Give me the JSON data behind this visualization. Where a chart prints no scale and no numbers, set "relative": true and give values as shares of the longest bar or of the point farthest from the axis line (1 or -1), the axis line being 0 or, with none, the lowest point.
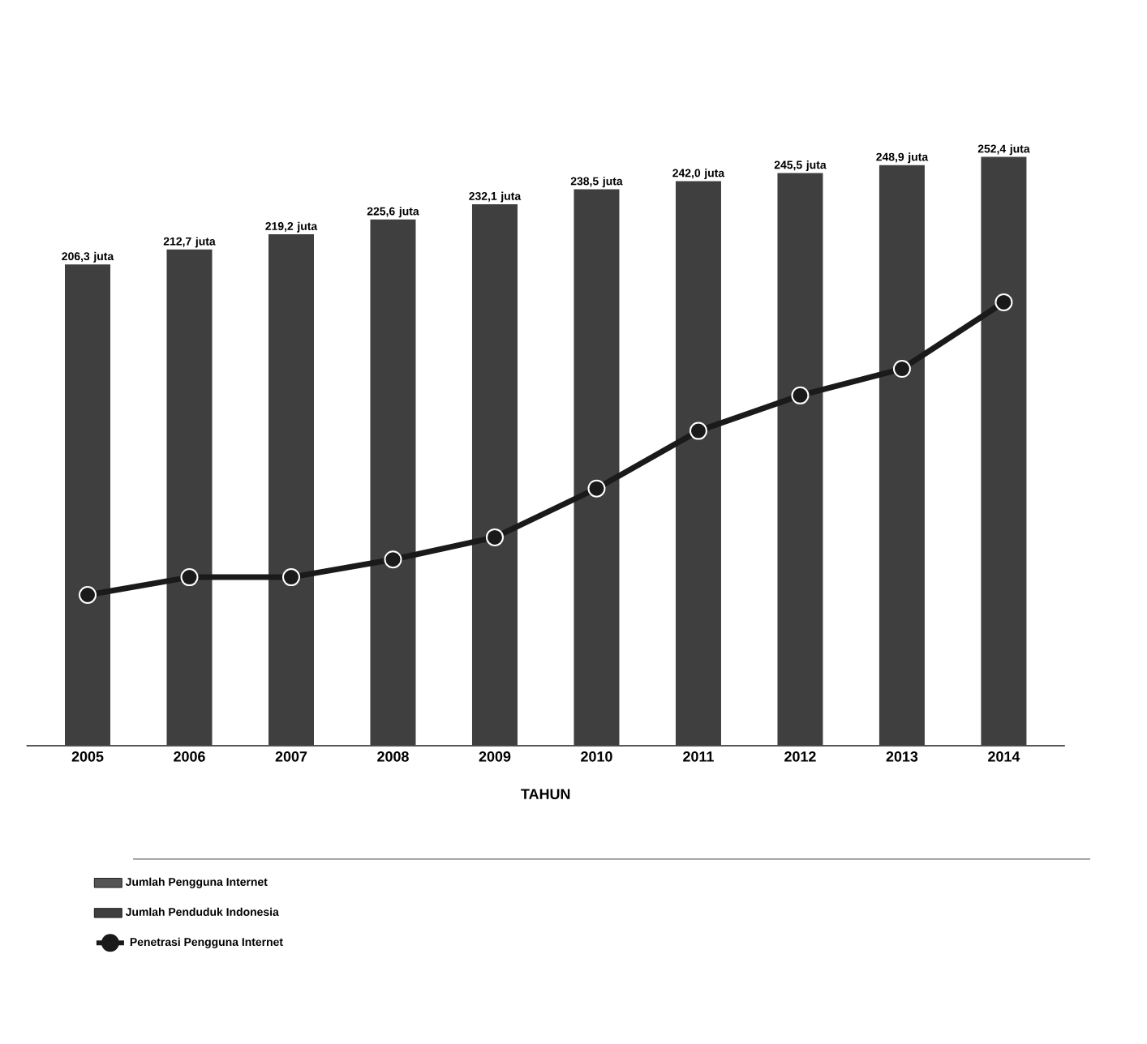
{
  "chart_data": [
    {
      "type": "bar",
      "xlabel": "TAHUN",
      "categories": [
        "2005",
        "2006",
        "2007",
        "2008",
        "2009",
        "2010",
        "2011",
        "2012",
        "2013",
        "2014"
      ],
      "series": [
        {
          "name": "Jumlah Pengguna Internet",
          "type": "bar",
          "color": "#555555",
          "values": [
            null,
            null,
            null,
            null,
            null,
            null,
            null,
            null,
            null,
            null
          ]
        },
        {
          "name": "Jumlah Penduduk Indonesia",
          "type": "bar",
          "color": "#3f3f3f",
          "values": [
            206.3,
            212.7,
            219.2,
            225.6,
            232.1,
            238.5,
            242.0,
            245.5,
            248.9,
            252.4
          ],
          "value_labels": [
            "206,3 juta",
            "212,7 juta",
            "219,2 juta",
            "225,6 juta",
            "232,1 juta",
            "238,5 juta",
            "242,0 juta",
            "245,5 juta",
            "248,9 juta",
            "252,4 juta"
          ]
        }
      ],
      "legend": "bottom"
    },
    {
      "type": "line",
      "relative": true,
      "categories": [
        "2005",
        "2006",
        "2007",
        "2008",
        "2009",
        "2010",
        "2011",
        "2012",
        "2013",
        "2014"
      ],
      "tick_labels": false,
      "series": [
        {
          "name": "Penetrasi Pengguna Internet",
          "color": "#1a1a1a",
          "values": [
            0.34,
            0.38,
            0.38,
            0.42,
            0.47,
            0.58,
            0.71,
            0.79,
            0.85,
            1
          ]
        }
      ],
      "legend": "bottom",
      "marker": "circle",
      "line_style": "solid"
    }
  ]
}
